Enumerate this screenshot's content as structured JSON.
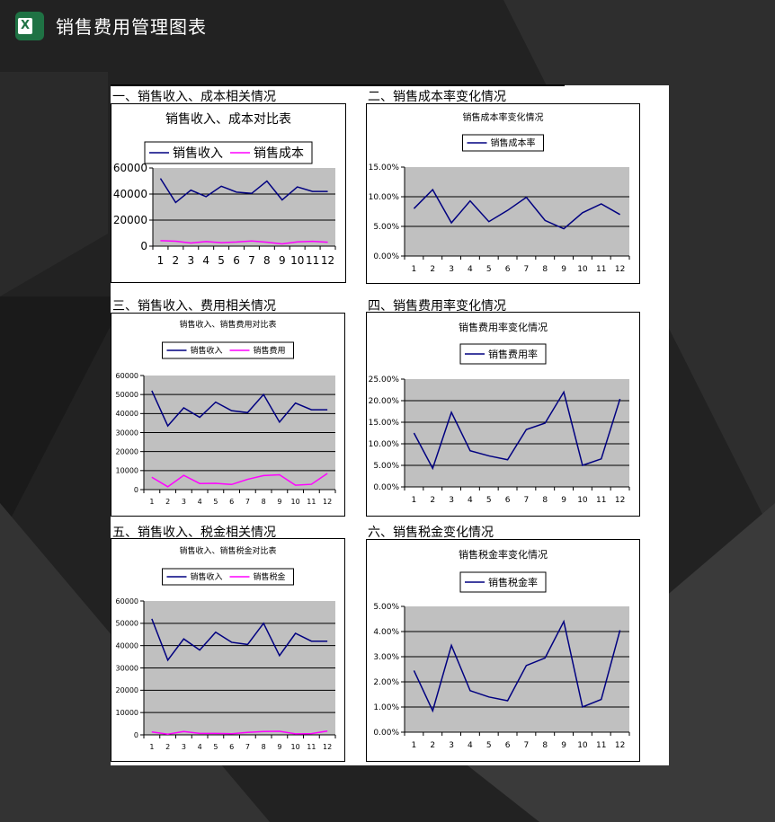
{
  "header": {
    "title": "销售费用管理图表",
    "icon": "excel-icon"
  },
  "sections": [
    "一、销售收入、成本相关情况",
    "二、销售成本率变化情况",
    "三、销售收入、费用相关情况",
    "四、销售费用率变化情况",
    "五、销售收入、税金相关情况",
    "六、销售税金变化情况"
  ],
  "colors": {
    "revenue": "#000080",
    "secondary": "#ff00ff",
    "plot_bg": "#c0c0c0"
  },
  "chart_data": [
    {
      "type": "line",
      "title": "销售收入、成本对比表",
      "categories": [
        "1",
        "2",
        "3",
        "4",
        "5",
        "6",
        "7",
        "8",
        "9",
        "10",
        "11",
        "12"
      ],
      "series": [
        {
          "name": "销售收入",
          "values": [
            52000,
            33500,
            43000,
            38000,
            46000,
            41500,
            40500,
            50000,
            35500,
            45500,
            42000,
            42000
          ]
        },
        {
          "name": "销售成本",
          "values": [
            4200,
            3800,
            2400,
            3500,
            2700,
            3200,
            4000,
            3000,
            1700,
            3300,
            3700,
            3000
          ]
        }
      ],
      "ylim": [
        0,
        60000
      ],
      "yticks": [
        "0",
        "20000",
        "40000",
        "60000"
      ],
      "grid": true,
      "legend": "top"
    },
    {
      "type": "line",
      "title": "销售成本率变化情况",
      "categories": [
        "1",
        "2",
        "3",
        "4",
        "5",
        "6",
        "7",
        "8",
        "9",
        "10",
        "11",
        "12"
      ],
      "series": [
        {
          "name": "销售成本率",
          "values": [
            8.0,
            11.2,
            5.6,
            9.3,
            5.8,
            7.7,
            9.9,
            6.0,
            4.6,
            7.3,
            8.8,
            7.0
          ]
        }
      ],
      "ylim": [
        0,
        15
      ],
      "yticks": [
        "0.00%",
        "5.00%",
        "10.00%",
        "15.00%"
      ],
      "grid": true,
      "legend": "top"
    },
    {
      "type": "line",
      "title": "销售收入、销售费用对比表",
      "categories": [
        "1",
        "2",
        "3",
        "4",
        "5",
        "6",
        "7",
        "8",
        "9",
        "10",
        "11",
        "12"
      ],
      "series": [
        {
          "name": "销售收入",
          "values": [
            52000,
            33500,
            43000,
            38000,
            46000,
            41500,
            40500,
            50000,
            35500,
            45500,
            42000,
            42000
          ]
        },
        {
          "name": "销售费用",
          "values": [
            6500,
            1500,
            7500,
            3200,
            3300,
            2700,
            5400,
            7400,
            7800,
            2300,
            2800,
            8500
          ]
        }
      ],
      "ylim": [
        0,
        60000
      ],
      "yticks": [
        "0",
        "10000",
        "20000",
        "30000",
        "40000",
        "50000",
        "60000"
      ],
      "grid": true,
      "legend": "top"
    },
    {
      "type": "line",
      "title": "销售费用率变化情况",
      "categories": [
        "1",
        "2",
        "3",
        "4",
        "5",
        "6",
        "7",
        "8",
        "9",
        "10",
        "11",
        "12"
      ],
      "series": [
        {
          "name": "销售费用率",
          "values": [
            12.5,
            4.3,
            17.3,
            8.4,
            7.2,
            6.3,
            13.3,
            14.8,
            22.0,
            5.0,
            6.5,
            20.4
          ]
        }
      ],
      "ylim": [
        0,
        25
      ],
      "yticks": [
        "0.00%",
        "5.00%",
        "10.00%",
        "15.00%",
        "20.00%",
        "25.00%"
      ],
      "grid": true,
      "legend": "top"
    },
    {
      "type": "line",
      "title": "销售收入、销售税金对比表",
      "categories": [
        "1",
        "2",
        "3",
        "4",
        "5",
        "6",
        "7",
        "8",
        "9",
        "10",
        "11",
        "12"
      ],
      "series": [
        {
          "name": "销售收入",
          "values": [
            52000,
            33500,
            43000,
            38000,
            46000,
            41500,
            40500,
            50000,
            35500,
            45500,
            42000,
            42000
          ]
        },
        {
          "name": "销售税金",
          "values": [
            1300,
            300,
            1500,
            650,
            650,
            520,
            1100,
            1500,
            1600,
            450,
            550,
            1700
          ]
        }
      ],
      "ylim": [
        0,
        60000
      ],
      "yticks": [
        "0",
        "10000",
        "20000",
        "30000",
        "40000",
        "50000",
        "60000"
      ],
      "grid": true,
      "legend": "top"
    },
    {
      "type": "line",
      "title": "销售税金率变化情况",
      "categories": [
        "1",
        "2",
        "3",
        "4",
        "5",
        "6",
        "7",
        "8",
        "9",
        "10",
        "11",
        "12"
      ],
      "series": [
        {
          "name": "销售税金率",
          "values": [
            2.45,
            0.85,
            3.45,
            1.65,
            1.4,
            1.25,
            2.65,
            2.95,
            4.4,
            1.0,
            1.3,
            4.05
          ]
        }
      ],
      "ylim": [
        0,
        5
      ],
      "yticks": [
        "0.00%",
        "1.00%",
        "2.00%",
        "3.00%",
        "4.00%",
        "5.00%"
      ],
      "grid": true,
      "legend": "top"
    }
  ]
}
